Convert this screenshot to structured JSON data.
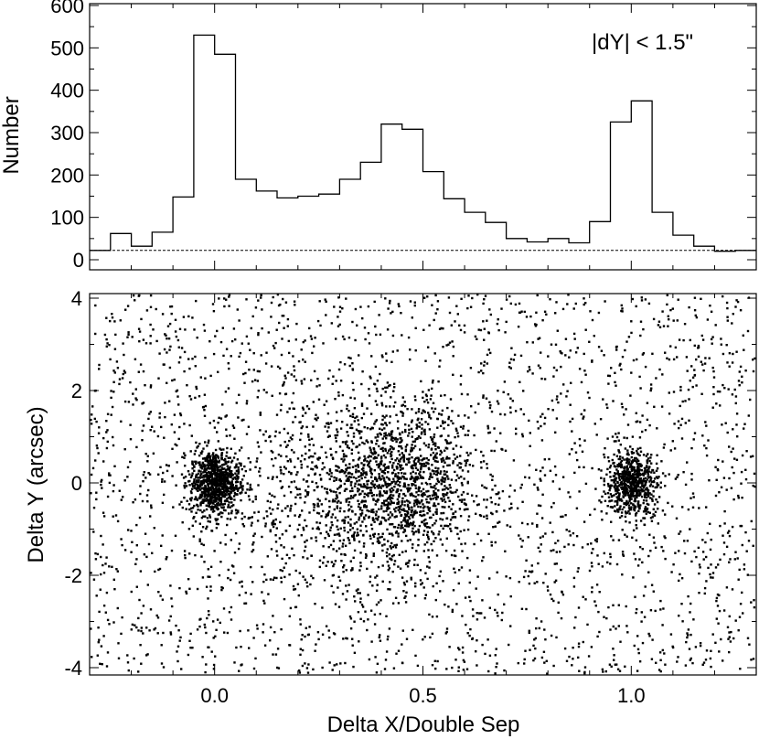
{
  "chart_data": [
    {
      "type": "bar",
      "style": "step-histogram",
      "ylabel": "Number",
      "xlabel": "",
      "annotation": "|dY| < 1.5\"",
      "xlim": [
        -0.3,
        1.3
      ],
      "ylim": [
        0,
        600
      ],
      "yticks": [
        0,
        100,
        200,
        300,
        400,
        500,
        600
      ],
      "ytick_labels": [
        "0",
        "100",
        "200",
        "300",
        "400",
        "500",
        "600"
      ],
      "xticks": [
        0.0,
        0.5,
        1.0
      ],
      "bin_edges": [
        -0.3,
        -0.25,
        -0.2,
        -0.15,
        -0.1,
        -0.05,
        0.0,
        0.05,
        0.1,
        0.15,
        0.2,
        0.25,
        0.3,
        0.35,
        0.4,
        0.45,
        0.5,
        0.55,
        0.6,
        0.65,
        0.7,
        0.75,
        0.8,
        0.85,
        0.9,
        0.95,
        1.0,
        1.05,
        1.1,
        1.15,
        1.2,
        1.25,
        1.3
      ],
      "values": [
        22,
        62,
        32,
        65,
        148,
        530,
        485,
        190,
        162,
        146,
        150,
        155,
        190,
        230,
        320,
        308,
        208,
        144,
        112,
        88,
        50,
        42,
        50,
        40,
        90,
        325,
        375,
        112,
        58,
        32,
        20,
        22
      ],
      "background_level": 22
    },
    {
      "type": "scatter",
      "xlabel": "Delta X/Double Sep",
      "ylabel": "Delta Y (arcsec)",
      "xlim": [
        -0.3,
        1.3
      ],
      "ylim": [
        -4.3,
        4.3
      ],
      "xticks": [
        0.0,
        0.5,
        1.0
      ],
      "xtick_labels": [
        "0.0",
        "0.5",
        "1.0"
      ],
      "yticks": [
        -4,
        -2,
        0,
        2,
        4
      ],
      "ytick_labels": [
        "-4",
        "-2",
        "0",
        "2",
        "4"
      ],
      "n_background_points": 2600,
      "clusters": [
        {
          "x": 0.0,
          "y": 0.0,
          "sx": 0.03,
          "sy": 0.35,
          "n": 900
        },
        {
          "x": 0.45,
          "y": 0.0,
          "sx": 0.09,
          "sy": 0.8,
          "n": 1100
        },
        {
          "x": 0.3,
          "y": -0.3,
          "sx": 0.12,
          "sy": 1.1,
          "n": 500
        },
        {
          "x": 1.0,
          "y": 0.0,
          "sx": 0.03,
          "sy": 0.35,
          "n": 650
        }
      ]
    }
  ]
}
